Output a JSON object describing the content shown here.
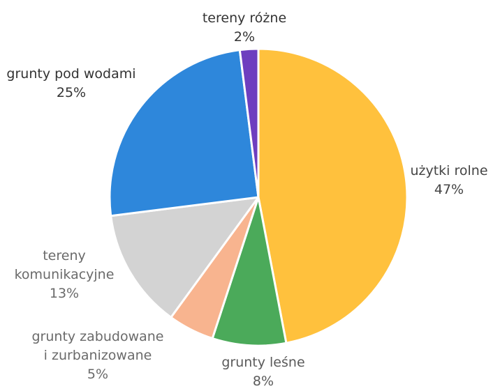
{
  "chart_data": {
    "type": "pie",
    "slices": [
      {
        "label_lines": [
          "użytki rolne"
        ],
        "value": 47,
        "value_label": "47%",
        "color": "#FFC13D",
        "label_color": "#444444"
      },
      {
        "label_lines": [
          "grunty leśne"
        ],
        "value": 8,
        "value_label": "8%",
        "color": "#4BAA5A",
        "label_color": "#5a5a5a"
      },
      {
        "label_lines": [
          "grunty zabudowane",
          "i zurbanizowane"
        ],
        "value": 5,
        "value_label": "5%",
        "color": "#F8B48F",
        "label_color": "#6a6a6a"
      },
      {
        "label_lines": [
          "tereny",
          "komunikacyjne"
        ],
        "value": 13,
        "value_label": "13%",
        "color": "#D3D3D3",
        "label_color": "#6a6a6a"
      },
      {
        "label_lines": [
          "grunty pod wodami"
        ],
        "value": 25,
        "value_label": "25%",
        "color": "#2E87DB",
        "label_color": "#333333"
      },
      {
        "label_lines": [
          "tereny różne"
        ],
        "value": 2,
        "value_label": "2%",
        "color": "#6E3EBF",
        "label_color": "#333333"
      }
    ]
  }
}
